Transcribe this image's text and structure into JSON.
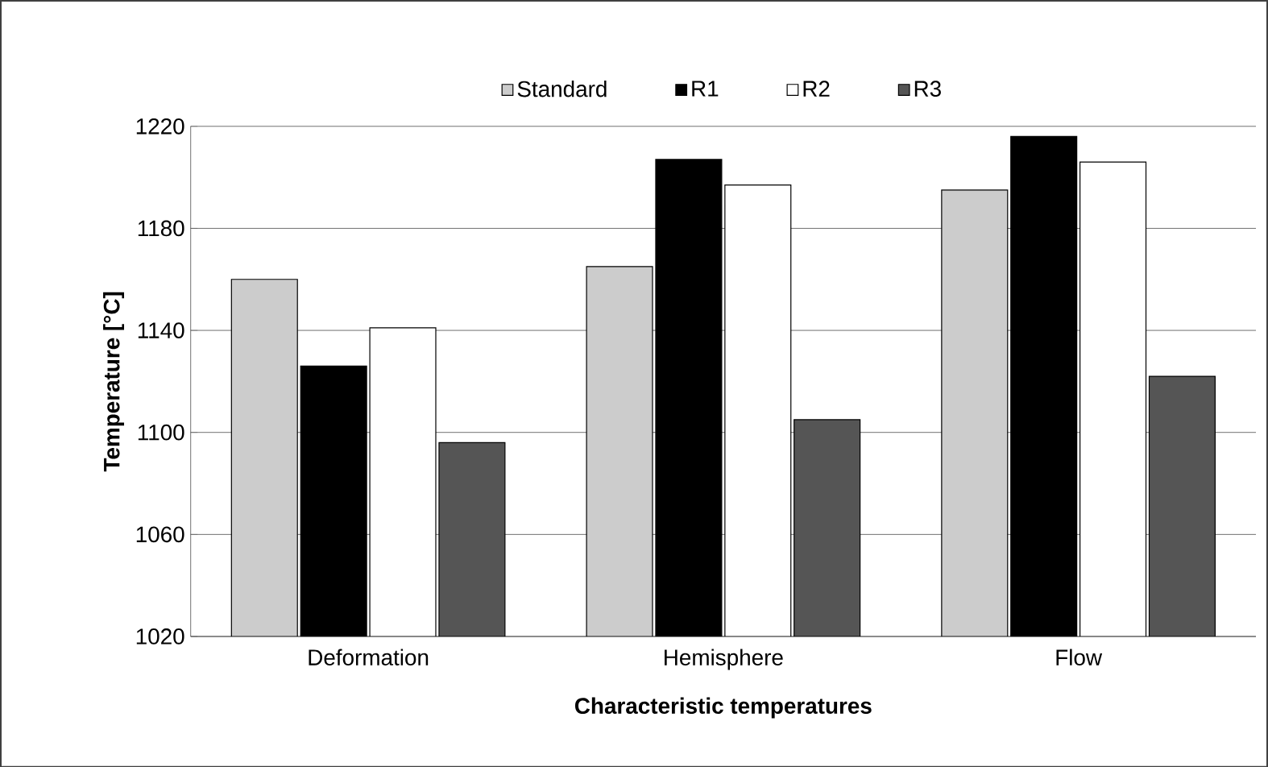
{
  "chart_data": {
    "type": "bar",
    "xlabel": "Characteristic temperatures",
    "ylabel": "Temperature [°C]",
    "categories": [
      "Deformation",
      "Hemisphere",
      "Flow"
    ],
    "series": [
      {
        "name": "Standard",
        "color": "#cccccc",
        "values": [
          1160,
          1165,
          1195
        ]
      },
      {
        "name": "R1",
        "color": "#000000",
        "values": [
          1126,
          1207,
          1216
        ]
      },
      {
        "name": "R2",
        "color": "#ffffff",
        "values": [
          1141,
          1197,
          1206
        ]
      },
      {
        "name": "R3",
        "color": "#555555",
        "values": [
          1096,
          1105,
          1122
        ]
      }
    ],
    "ylim": [
      1020,
      1220
    ],
    "yticks": [
      1020,
      1060,
      1100,
      1140,
      1180,
      1220
    ],
    "grid": "y",
    "legend": "top"
  }
}
